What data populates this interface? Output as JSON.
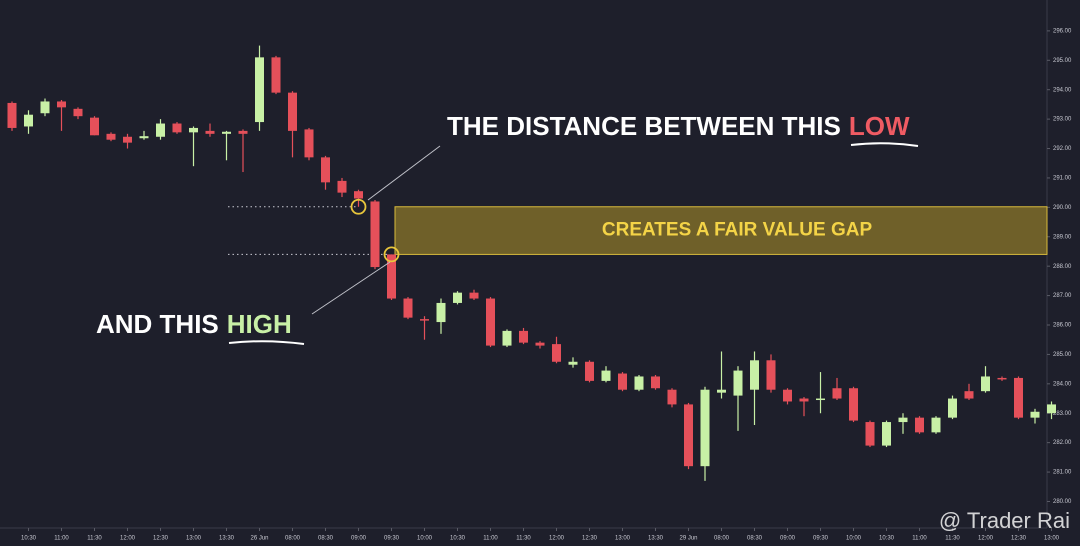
{
  "chart_data": {
    "type": "candlestick",
    "up_color": "#c8f0a6",
    "down_color": "#e5505a",
    "categories": [
      null,
      "10:30",
      null,
      "11:00",
      null,
      "11:30",
      null,
      "12:00",
      null,
      "12:30",
      null,
      "13:00",
      null,
      "13:30",
      null,
      "26 Jun",
      null,
      "08:00",
      null,
      "08:30",
      null,
      "09:00",
      null,
      "09:30",
      null,
      "10:00",
      null,
      "10:30",
      null,
      "11:00",
      null,
      "11:30",
      null,
      "12:00",
      null,
      "12:30",
      null,
      "13:00",
      null,
      "13:30",
      null,
      "29 Jun",
      null,
      "08:00",
      null,
      "08:30",
      null,
      "09:00",
      null,
      "09:30",
      null,
      "10:00",
      null,
      "10:30",
      null,
      "11:00",
      null,
      "11:30",
      null,
      "12:00",
      null,
      "12:30",
      null,
      "13:00"
    ],
    "open": [
      293.55,
      292.75,
      293.2,
      293.6,
      293.35,
      293.05,
      292.5,
      292.4,
      292.35,
      292.4,
      292.85,
      292.55,
      292.6,
      292.5,
      292.6,
      292.9,
      295.1,
      293.9,
      292.65,
      291.7,
      290.9,
      290.55,
      290.2,
      288.4,
      286.9,
      286.2,
      286.1,
      286.75,
      287.1,
      286.9,
      285.3,
      285.8,
      285.4,
      285.35,
      284.65,
      284.75,
      284.1,
      284.35,
      283.8,
      284.25,
      283.8,
      283.3,
      281.2,
      283.7,
      283.6,
      283.8,
      284.8,
      283.8,
      283.5,
      283.45,
      283.85,
      283.85,
      282.7,
      281.9,
      282.7,
      282.85,
      282.35,
      282.85,
      283.75,
      283.75,
      284.2,
      284.2,
      282.85,
      283.0
    ],
    "high": [
      293.6,
      293.3,
      293.7,
      293.65,
      293.4,
      293.1,
      292.55,
      292.5,
      292.6,
      293.0,
      292.9,
      292.75,
      292.85,
      292.6,
      292.65,
      295.5,
      295.15,
      293.95,
      292.7,
      291.75,
      291.0,
      290.6,
      290.25,
      288.4,
      286.95,
      286.3,
      286.9,
      287.15,
      287.2,
      286.95,
      285.85,
      285.9,
      285.45,
      285.6,
      284.9,
      284.8,
      284.6,
      284.4,
      284.3,
      284.3,
      283.85,
      283.35,
      283.9,
      285.1,
      284.6,
      285.1,
      285.0,
      283.85,
      283.55,
      284.4,
      284.2,
      283.9,
      282.75,
      282.75,
      283.0,
      282.9,
      282.9,
      283.6,
      284.0,
      284.6,
      284.25,
      284.25,
      283.15,
      283.4
    ],
    "low": [
      292.6,
      292.5,
      293.1,
      292.6,
      293.0,
      292.45,
      292.25,
      292.0,
      292.3,
      292.3,
      292.5,
      291.4,
      292.4,
      291.6,
      291.2,
      292.6,
      293.85,
      291.7,
      291.6,
      290.6,
      290.35,
      290.02,
      287.9,
      286.85,
      286.2,
      285.5,
      285.7,
      286.7,
      286.85,
      285.25,
      285.25,
      285.35,
      285.2,
      284.7,
      284.55,
      284.05,
      284.05,
      283.75,
      283.75,
      283.8,
      283.2,
      281.1,
      280.7,
      283.5,
      282.4,
      282.6,
      283.7,
      283.3,
      282.9,
      283.0,
      283.45,
      282.7,
      281.85,
      281.85,
      282.3,
      282.3,
      282.3,
      282.8,
      283.45,
      283.7,
      284.1,
      282.8,
      282.65,
      282.8
    ],
    "close": [
      292.7,
      293.15,
      293.6,
      293.4,
      293.1,
      292.45,
      292.3,
      292.2,
      292.42,
      292.85,
      292.55,
      292.7,
      292.5,
      292.57,
      292.5,
      295.1,
      293.9,
      292.6,
      291.7,
      290.85,
      290.5,
      290.3,
      287.97,
      286.9,
      286.25,
      286.15,
      286.75,
      287.1,
      286.9,
      285.3,
      285.8,
      285.4,
      285.3,
      284.75,
      284.75,
      284.1,
      284.45,
      283.8,
      284.25,
      283.85,
      283.3,
      281.2,
      283.8,
      283.8,
      284.45,
      284.8,
      283.8,
      283.4,
      283.4,
      283.5,
      283.5,
      282.75,
      281.9,
      282.7,
      282.85,
      282.35,
      282.85,
      283.5,
      283.5,
      284.25,
      284.15,
      282.85,
      283.05,
      283.3
    ],
    "ylim": [
      279.2,
      297.05
    ],
    "yticks": [
      {
        "value": 280,
        "label": "280.00"
      },
      {
        "value": 281,
        "label": "281.00"
      },
      {
        "value": 282,
        "label": "282.00"
      },
      {
        "value": 283,
        "label": "283.00"
      },
      {
        "value": 284,
        "label": "284.00"
      },
      {
        "value": 285,
        "label": "285.00"
      },
      {
        "value": 286,
        "label": "286.00"
      },
      {
        "value": 287,
        "label": "287.00"
      },
      {
        "value": 288,
        "label": "288.00"
      },
      {
        "value": 289,
        "label": "289.00"
      },
      {
        "value": 290,
        "label": "290.00"
      },
      {
        "value": 291,
        "label": "291.00"
      },
      {
        "value": 292,
        "label": "292.00"
      },
      {
        "value": 293,
        "label": "293.00"
      },
      {
        "value": 294,
        "label": "294.00"
      },
      {
        "value": 295,
        "label": "295.00"
      },
      {
        "value": 296,
        "label": "296.00"
      }
    ],
    "annotation_top": "THE DISTANCE BETWEEN THIS",
    "annotation_top_key": "LOW",
    "annotation_bottom": "AND THIS",
    "annotation_bottom_key": "HIGH",
    "gap_label": "CREATES A FAIR VALUE GAP",
    "watermark": "@ Trader Rai"
  }
}
